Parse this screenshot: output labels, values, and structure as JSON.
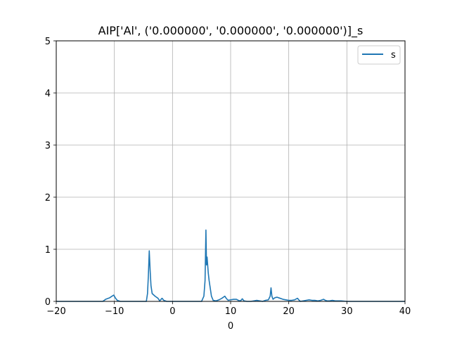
{
  "chart_data": {
    "type": "line",
    "title": "AIP['Al', ('0.000000', '0.000000', '0.000000')]_s",
    "xlabel": "0",
    "ylabel": "",
    "xlim": [
      -20,
      40
    ],
    "ylim": [
      0,
      5
    ],
    "x_ticks": [
      -20,
      -10,
      0,
      10,
      20,
      30,
      40
    ],
    "y_ticks": [
      0,
      1,
      2,
      3,
      4,
      5
    ],
    "x_tick_labels": [
      "−20",
      "−10",
      "0",
      "10",
      "20",
      "30",
      "40"
    ],
    "y_tick_labels": [
      "0",
      "1",
      "2",
      "3",
      "4",
      "5"
    ],
    "grid": true,
    "legend_position": "top-right",
    "series_color": "#1f77b4",
    "series": [
      {
        "name": "s",
        "x": [
          -20,
          -12.0,
          -11.5,
          -10.8,
          -10.4,
          -10.1,
          -9.8,
          -9.5,
          -9.0,
          -4.5,
          -4.3,
          -4.15,
          -4.0,
          -3.85,
          -3.7,
          -3.5,
          -3.0,
          -2.5,
          -2.2,
          -1.8,
          -1.5,
          -1.0,
          0,
          5.0,
          5.4,
          5.6,
          5.75,
          5.85,
          5.95,
          6.05,
          6.15,
          6.3,
          6.5,
          6.7,
          7.0,
          7.5,
          8.0,
          8.5,
          9.0,
          9.3,
          9.6,
          10.0,
          10.5,
          11.0,
          11.5,
          11.8,
          12.0,
          12.3,
          12.8,
          13.5,
          14.0,
          14.5,
          15.0,
          15.5,
          16.0,
          16.5,
          16.8,
          16.95,
          17.1,
          17.3,
          17.6,
          18.0,
          18.5,
          19.0,
          19.5,
          20.0,
          20.5,
          21.0,
          21.5,
          21.8,
          22.0,
          22.5,
          23.0,
          23.5,
          24.0,
          24.5,
          25.0,
          25.5,
          26.0,
          26.3,
          26.6,
          27.0,
          27.5,
          28.0,
          29.0,
          30.0,
          31.0,
          40.0
        ],
        "y": [
          0,
          0,
          0.04,
          0.07,
          0.1,
          0.12,
          0.06,
          0.02,
          0,
          0,
          0.15,
          0.5,
          0.97,
          0.6,
          0.3,
          0.15,
          0.1,
          0.06,
          0.01,
          0.06,
          0.02,
          0,
          0,
          0,
          0.1,
          0.4,
          1.37,
          0.7,
          0.85,
          0.7,
          0.55,
          0.4,
          0.25,
          0.1,
          0.02,
          0.01,
          0.03,
          0.06,
          0.1,
          0.05,
          0.02,
          0.03,
          0.04,
          0.04,
          0.01,
          0.02,
          0.05,
          0.01,
          0,
          0,
          0.01,
          0.02,
          0.01,
          0,
          0.02,
          0.03,
          0.1,
          0.26,
          0.1,
          0.04,
          0.07,
          0.08,
          0.06,
          0.04,
          0.03,
          0.02,
          0.02,
          0.03,
          0.06,
          0.02,
          0,
          0.01,
          0.02,
          0.03,
          0.02,
          0.02,
          0.01,
          0.02,
          0.04,
          0.02,
          0.01,
          0.01,
          0.02,
          0.01,
          0.01,
          0,
          0,
          0
        ]
      }
    ]
  }
}
